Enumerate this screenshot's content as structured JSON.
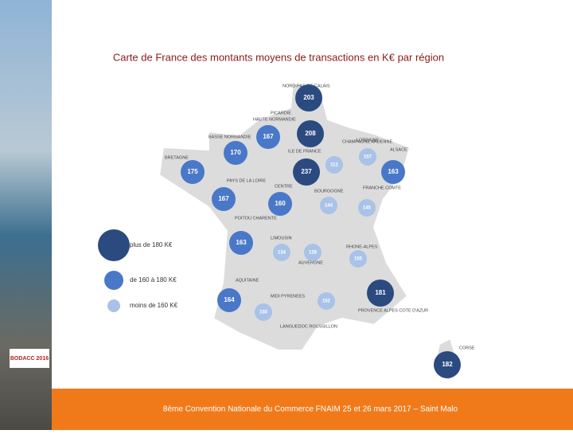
{
  "title": "Carte de France des montants moyens de transactions en K€ par région",
  "legend": [
    {
      "label": "plus de 180 K€",
      "color": "#2b4a80"
    },
    {
      "label": "de 160 à 180 K€",
      "color": "#4a78c8"
    },
    {
      "label": "moins de 160 K€",
      "color": "#a9c2e8"
    }
  ],
  "regions": [
    {
      "name": "NORD-PAS-DE-CALAIS",
      "value": "203",
      "color": "#2b4a80"
    },
    {
      "name": "PICARDIE",
      "value": "208",
      "color": "#2b4a80"
    },
    {
      "name": "HAUTE NORMANDIE",
      "value": "167",
      "color": "#4a78c8"
    },
    {
      "name": "BASSE NORMANDIE",
      "value": "170",
      "color": "#4a78c8"
    },
    {
      "name": "BRETAGNE",
      "value": "175",
      "color": "#4a78c8"
    },
    {
      "name": "ILE DE FRANCE",
      "value": "237",
      "color": "#2b4a80"
    },
    {
      "name": "CHAMPAGNE ARDENNE",
      "value": "112",
      "color": "#a9c2e8"
    },
    {
      "name": "LORRAINE",
      "value": "157",
      "color": "#a9c2e8"
    },
    {
      "name": "ALSACE",
      "value": "163",
      "color": "#4a78c8"
    },
    {
      "name": "PAYS DE LA LOIRE",
      "value": "167",
      "color": "#4a78c8"
    },
    {
      "name": "CENTRE",
      "value": "160",
      "color": "#4a78c8"
    },
    {
      "name": "BOURGOGNE",
      "value": "144",
      "color": "#a9c2e8"
    },
    {
      "name": "FRANCHE COMTE",
      "value": "145",
      "color": "#a9c2e8"
    },
    {
      "name": "POITOU CHARENTE",
      "value": "163",
      "color": "#4a78c8"
    },
    {
      "name": "LIMOUSIN",
      "value": "134",
      "color": "#a9c2e8"
    },
    {
      "name": "AUVERGNE",
      "value": "128",
      "color": "#a9c2e8"
    },
    {
      "name": "RHONE-ALPES",
      "value": "155",
      "color": "#a9c2e8"
    },
    {
      "name": "AQUITAINE",
      "value": "164",
      "color": "#4a78c8"
    },
    {
      "name": "MIDI PYRENEES",
      "value": "150",
      "color": "#a9c2e8"
    },
    {
      "name": "LANGUEDOC ROUSSILLON",
      "value": "152",
      "color": "#a9c2e8"
    },
    {
      "name": "PROVENCE ALPES COTE D'AZUR",
      "value": "181",
      "color": "#2b4a80"
    },
    {
      "name": "CORSE",
      "value": "182",
      "color": "#2b4a80"
    }
  ],
  "logo": "BODACC 2016",
  "footer": "8ème Convention Nationale du Commerce FNAIM  25 et 26 mars 2017 – Saint Malo"
}
